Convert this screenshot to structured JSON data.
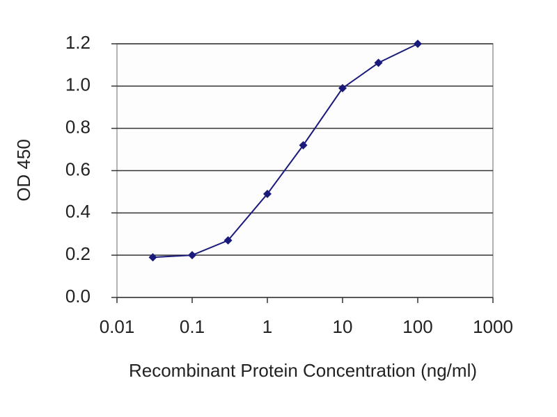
{
  "chart_data": {
    "type": "line",
    "x_label": "Recombinant Protein Concentration (ng/ml)",
    "y_label": "OD 450",
    "x": [
      0.03,
      0.1,
      0.3,
      1,
      3,
      10,
      30,
      100
    ],
    "series": [
      {
        "color": "#1a1a7a",
        "values": [
          0.19,
          0.2,
          0.27,
          0.49,
          0.72,
          0.99,
          1.11,
          1.2
        ]
      }
    ],
    "xscale": "log",
    "xlim": [
      0.01,
      1000
    ],
    "xticks": [
      0.01,
      0.1,
      1,
      10,
      100,
      1000
    ],
    "ylim": [
      0,
      1.2
    ],
    "yticks": [
      {
        "value": 0,
        "label": "0.0"
      },
      0.2,
      0.4,
      0.6,
      0.8,
      {
        "value": 1,
        "label": "1.0"
      },
      1.2
    ],
    "grid": true
  }
}
